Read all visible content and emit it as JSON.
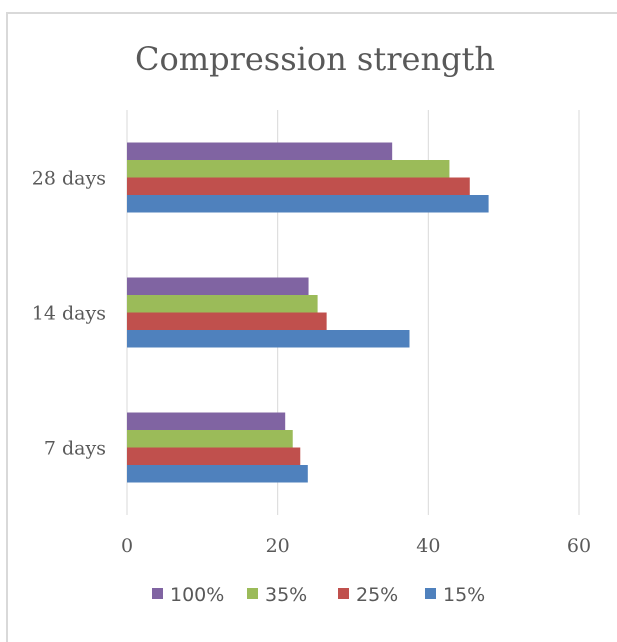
{
  "chart_data": {
    "type": "bar",
    "orientation": "horizontal",
    "title": "Compression strength",
    "xlabel": "",
    "ylabel": "",
    "categories": [
      "7 days",
      "14 days",
      "28 days"
    ],
    "series": [
      {
        "name": "15%",
        "color": "#4f81bd",
        "values": [
          24,
          37.5,
          48
        ]
      },
      {
        "name": "25%",
        "color": "#c0504d",
        "values": [
          23,
          26.5,
          45.5
        ]
      },
      {
        "name": "35%",
        "color": "#9bbb59",
        "values": [
          22,
          25.3,
          42.8
        ]
      },
      {
        "name": "100%",
        "color": "#8064a2",
        "values": [
          21,
          24.1,
          35.2
        ]
      }
    ],
    "xlim": [
      0,
      60
    ],
    "xticks": [
      "0",
      "20",
      "40",
      "60"
    ],
    "grid": "vertical",
    "legend_position": "bottom",
    "legend_order": [
      "100%",
      "35%",
      "25%",
      "15%"
    ]
  }
}
